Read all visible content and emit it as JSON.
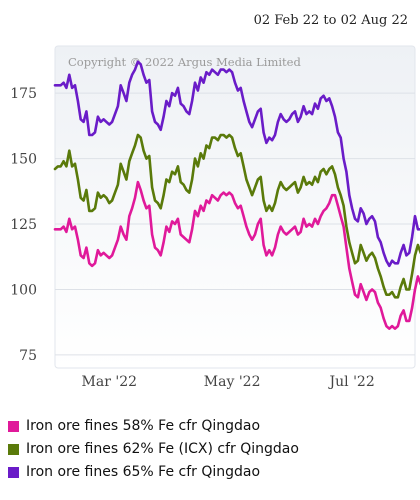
{
  "date_range": "02 Feb 22 to 02 Aug 22",
  "copyright": "Copyright © 2022 Argus Media Limited",
  "chart_data": {
    "type": "line",
    "title": "",
    "xlabel": "",
    "ylabel": "",
    "ylim": [
      70,
      193
    ],
    "y_ticks": [
      75,
      100,
      125,
      150,
      175
    ],
    "x_ticks": [
      {
        "label": "Mar '22",
        "x": 19
      },
      {
        "label": "May '22",
        "x": 62
      },
      {
        "label": "Jul '22",
        "x": 104
      }
    ],
    "x_range": [
      0,
      126
    ],
    "grid": "horizontal",
    "legend": "bottom",
    "series": [
      {
        "name": "Iron ore fines 58% Fe cfr Qingdao",
        "color": "#e0199a",
        "values": [
          123,
          123,
          123,
          124,
          122,
          127,
          123,
          124,
          119,
          113,
          112,
          116,
          110,
          109,
          110,
          115,
          113,
          114,
          113,
          112,
          113,
          116,
          119,
          124,
          121,
          119,
          128,
          131,
          135,
          141,
          138,
          134,
          131,
          132,
          121,
          116,
          115,
          113,
          118,
          124,
          122,
          126,
          125,
          127,
          121,
          120,
          119,
          118,
          123,
          130,
          128,
          132,
          130,
          134,
          133,
          136,
          135,
          134,
          136,
          137,
          136,
          137,
          136,
          133,
          131,
          132,
          128,
          124,
          121,
          119,
          121,
          125,
          127,
          117,
          113,
          115,
          113,
          116,
          121,
          124,
          122,
          121,
          122,
          123,
          124,
          121,
          122,
          127,
          124,
          125,
          124,
          127,
          125,
          128,
          130,
          131,
          133,
          136,
          136,
          132,
          128,
          124,
          116,
          108,
          103,
          98,
          97,
          102,
          99,
          96,
          99,
          100,
          99,
          95,
          93,
          89,
          86,
          85,
          86,
          85,
          86,
          90,
          92,
          88,
          88,
          93,
          100,
          105,
          102
        ]
      },
      {
        "name": "Iron ore fines 62% Fe (ICX) cfr Qingdao",
        "color": "#5a7a0a",
        "values": [
          146,
          147,
          147,
          149,
          147,
          153,
          147,
          148,
          142,
          135,
          134,
          138,
          130,
          130,
          131,
          137,
          135,
          136,
          135,
          133,
          134,
          137,
          140,
          148,
          145,
          142,
          149,
          152,
          155,
          159,
          158,
          153,
          150,
          151,
          139,
          134,
          133,
          131,
          136,
          142,
          141,
          145,
          144,
          147,
          141,
          140,
          138,
          137,
          142,
          150,
          147,
          152,
          150,
          155,
          154,
          158,
          158,
          157,
          159,
          159,
          158,
          159,
          158,
          154,
          151,
          152,
          147,
          142,
          139,
          136,
          139,
          142,
          143,
          134,
          130,
          132,
          130,
          133,
          138,
          141,
          139,
          138,
          139,
          140,
          141,
          137,
          139,
          143,
          140,
          141,
          140,
          143,
          141,
          145,
          146,
          144,
          146,
          147,
          144,
          139,
          136,
          132,
          124,
          118,
          114,
          110,
          111,
          117,
          114,
          111,
          113,
          114,
          112,
          108,
          105,
          101,
          98,
          98,
          99,
          97,
          97,
          101,
          104,
          100,
          100,
          106,
          113,
          117,
          114
        ]
      },
      {
        "name": "Iron ore fines 65% Fe cfr Qingdao",
        "color": "#6a1cc8",
        "values": [
          178,
          178,
          178,
          179,
          177,
          182,
          177,
          178,
          172,
          165,
          164,
          168,
          159,
          159,
          160,
          166,
          164,
          165,
          164,
          163,
          164,
          167,
          170,
          178,
          175,
          172,
          179,
          182,
          184,
          187,
          186,
          182,
          179,
          180,
          168,
          164,
          163,
          161,
          166,
          172,
          170,
          175,
          174,
          177,
          171,
          170,
          168,
          167,
          172,
          179,
          176,
          181,
          179,
          183,
          182,
          184,
          183,
          182,
          184,
          184,
          183,
          184,
          183,
          179,
          176,
          177,
          172,
          168,
          164,
          162,
          165,
          168,
          169,
          160,
          156,
          158,
          157,
          159,
          164,
          167,
          165,
          164,
          165,
          167,
          168,
          164,
          166,
          170,
          167,
          168,
          167,
          171,
          169,
          173,
          174,
          172,
          173,
          170,
          166,
          160,
          158,
          150,
          145,
          136,
          131,
          127,
          126,
          131,
          129,
          125,
          127,
          128,
          126,
          120,
          118,
          114,
          111,
          109,
          111,
          110,
          110,
          114,
          117,
          113,
          114,
          120,
          128,
          123,
          123
        ]
      }
    ]
  }
}
